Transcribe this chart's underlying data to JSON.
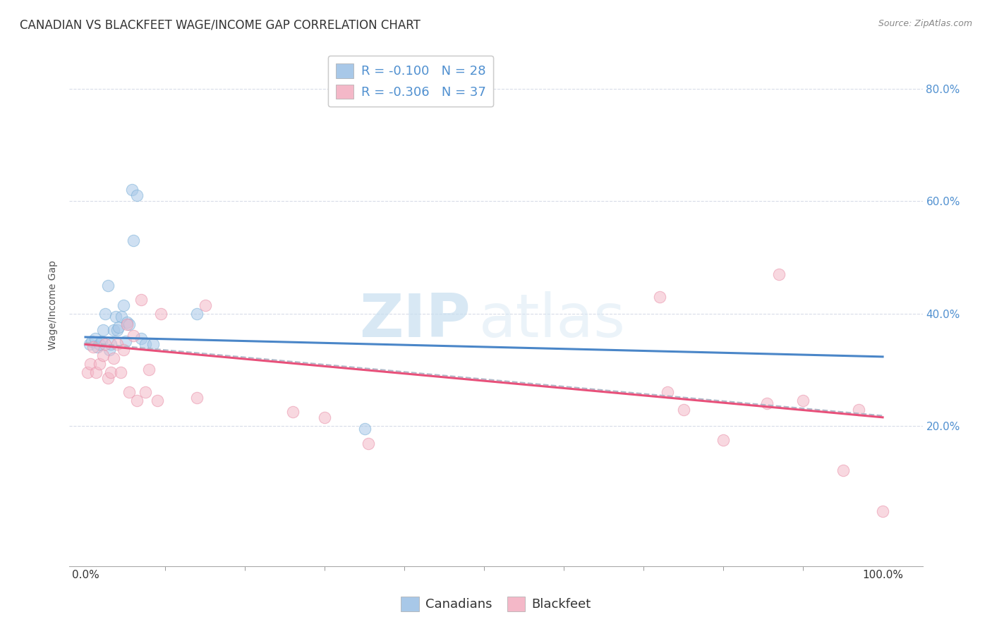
{
  "title": "CANADIAN VS BLACKFEET WAGE/INCOME GAP CORRELATION CHART",
  "source": "Source: ZipAtlas.com",
  "ylabel": "Wage/Income Gap",
  "xlim": [
    -0.02,
    1.05
  ],
  "ylim": [
    -0.05,
    0.88
  ],
  "xtick_labels_bottom": [
    "0.0%",
    "100.0%"
  ],
  "xtick_vals_bottom": [
    0.0,
    1.0
  ],
  "xtick_minor_vals": [
    0.1,
    0.2,
    0.3,
    0.4,
    0.5,
    0.6,
    0.7,
    0.8,
    0.9
  ],
  "ytick_labels_right": [
    "20.0%",
    "40.0%",
    "60.0%",
    "80.0%"
  ],
  "ytick_vals": [
    0.2,
    0.4,
    0.6,
    0.8
  ],
  "watermark_zip": "ZIP",
  "watermark_atlas": "atlas",
  "legend_blue_label": "R = -0.100   N = 28",
  "legend_pink_label": "R = -0.306   N = 37",
  "blue_color": "#a8c8e8",
  "pink_color": "#f4b8c8",
  "blue_scatter_edge": "#7ab0d8",
  "pink_scatter_edge": "#e890a8",
  "blue_line_color": "#4a86c8",
  "pink_line_color": "#e8507a",
  "dash_line_color": "#b0b8c8",
  "right_axis_color": "#5090d0",
  "canadians_x": [
    0.005,
    0.008,
    0.012,
    0.015,
    0.018,
    0.02,
    0.022,
    0.025,
    0.028,
    0.03,
    0.032,
    0.035,
    0.038,
    0.04,
    0.042,
    0.045,
    0.048,
    0.05,
    0.052,
    0.055,
    0.058,
    0.06,
    0.065,
    0.07,
    0.075,
    0.085,
    0.14,
    0.35
  ],
  "canadians_y": [
    0.345,
    0.35,
    0.355,
    0.34,
    0.345,
    0.35,
    0.37,
    0.4,
    0.45,
    0.335,
    0.345,
    0.37,
    0.395,
    0.37,
    0.375,
    0.395,
    0.415,
    0.35,
    0.385,
    0.38,
    0.62,
    0.53,
    0.61,
    0.355,
    0.345,
    0.345,
    0.4,
    0.195
  ],
  "blackfeet_x": [
    0.003,
    0.006,
    0.01,
    0.013,
    0.018,
    0.022,
    0.025,
    0.028,
    0.032,
    0.035,
    0.04,
    0.044,
    0.048,
    0.052,
    0.055,
    0.06,
    0.065,
    0.07,
    0.075,
    0.08,
    0.09,
    0.095,
    0.14,
    0.15,
    0.26,
    0.3,
    0.355,
    0.72,
    0.73,
    0.75,
    0.8,
    0.855,
    0.87,
    0.9,
    0.95,
    0.97,
    1.0
  ],
  "blackfeet_y": [
    0.295,
    0.31,
    0.34,
    0.295,
    0.31,
    0.325,
    0.345,
    0.285,
    0.295,
    0.32,
    0.345,
    0.295,
    0.335,
    0.38,
    0.26,
    0.36,
    0.245,
    0.425,
    0.26,
    0.3,
    0.245,
    0.4,
    0.25,
    0.415,
    0.225,
    0.215,
    0.168,
    0.43,
    0.26,
    0.228,
    0.175,
    0.24,
    0.47,
    0.245,
    0.12,
    0.228,
    0.048
  ],
  "blue_trend_x": [
    0.0,
    1.0
  ],
  "blue_trend_y": [
    0.358,
    0.323
  ],
  "pink_trend_x": [
    0.0,
    1.0
  ],
  "pink_trend_y": [
    0.345,
    0.215
  ],
  "dash_trend_x": [
    0.0,
    1.0
  ],
  "dash_trend_y": [
    0.348,
    0.218
  ],
  "background_color": "#ffffff",
  "grid_color": "#d8dce8",
  "title_fontsize": 12,
  "axis_label_fontsize": 10,
  "tick_fontsize": 11,
  "marker_size": 140,
  "marker_alpha": 0.55,
  "legend_fontsize": 13
}
